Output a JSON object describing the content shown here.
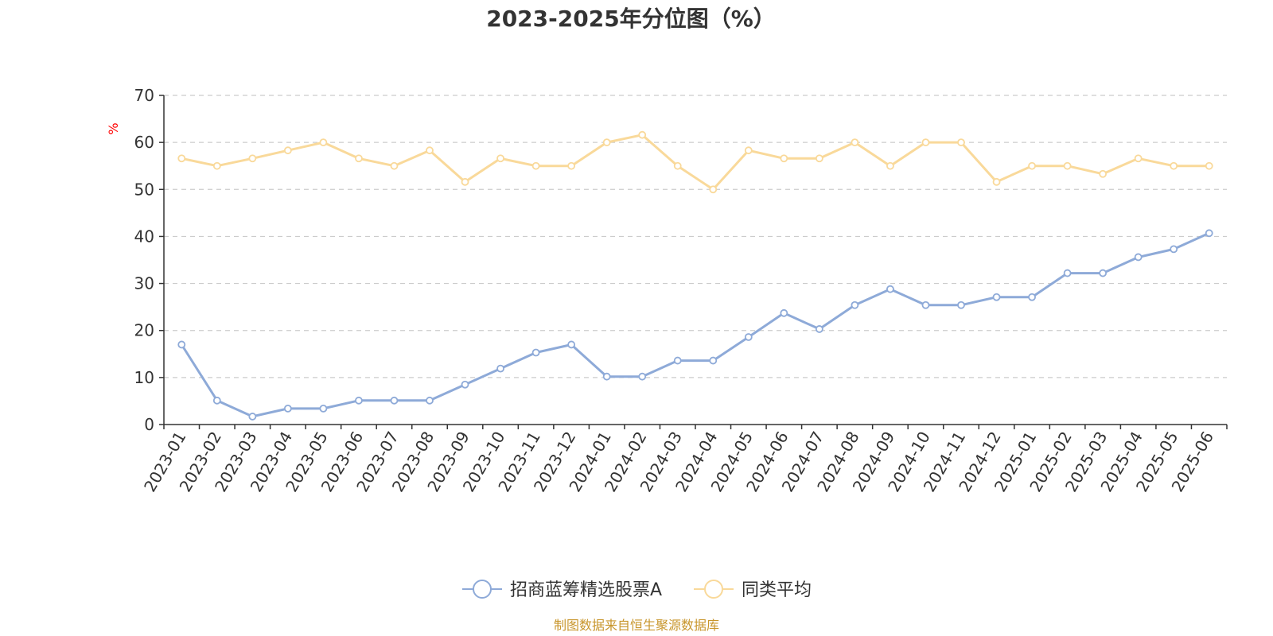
{
  "chart_data": {
    "type": "line",
    "title": "2023-2025年分位图（%）",
    "ylabel": "%",
    "ylim": [
      0,
      70
    ],
    "yticks": [
      0,
      10,
      20,
      30,
      40,
      50,
      60,
      70
    ],
    "grid": true,
    "legend_position": "bottom",
    "categories": [
      "2023-01",
      "2023-02",
      "2023-03",
      "2023-04",
      "2023-05",
      "2023-06",
      "2023-07",
      "2023-08",
      "2023-09",
      "2023-10",
      "2023-11",
      "2023-12",
      "2024-01",
      "2024-02",
      "2024-03",
      "2024-04",
      "2024-05",
      "2024-06",
      "2024-07",
      "2024-08",
      "2024-09",
      "2024-10",
      "2024-11",
      "2024-12",
      "2025-01",
      "2025-02",
      "2025-03",
      "2025-04",
      "2025-05",
      "2025-06"
    ],
    "series": [
      {
        "name": "招商蓝筹精选股票A",
        "color": "#8eaad8",
        "values": [
          17.0,
          5.1,
          1.7,
          3.4,
          3.4,
          5.1,
          5.1,
          5.1,
          8.5,
          11.9,
          15.3,
          17.0,
          10.2,
          10.2,
          13.6,
          13.6,
          18.6,
          23.7,
          20.3,
          25.4,
          28.8,
          25.4,
          25.4,
          27.1,
          27.1,
          32.2,
          32.2,
          35.6,
          37.3,
          40.7
        ]
      },
      {
        "name": "同类平均",
        "color": "#f9d99a",
        "values": [
          56.6,
          55.0,
          56.6,
          58.3,
          60.0,
          56.6,
          55.0,
          58.3,
          51.6,
          56.6,
          55.0,
          55.0,
          60.0,
          61.6,
          55.0,
          50.0,
          58.3,
          56.6,
          56.6,
          60.0,
          55.0,
          60.0,
          60.0,
          51.6,
          55.0,
          55.0,
          53.3,
          56.6,
          55.0,
          55.0
        ]
      }
    ],
    "source": "制图数据来自恒生聚源数据库",
    "colors": {
      "axis": "#333333",
      "grid": "#cccccc",
      "unit_label": "#ff0000",
      "source_text": "#c8962c"
    }
  }
}
